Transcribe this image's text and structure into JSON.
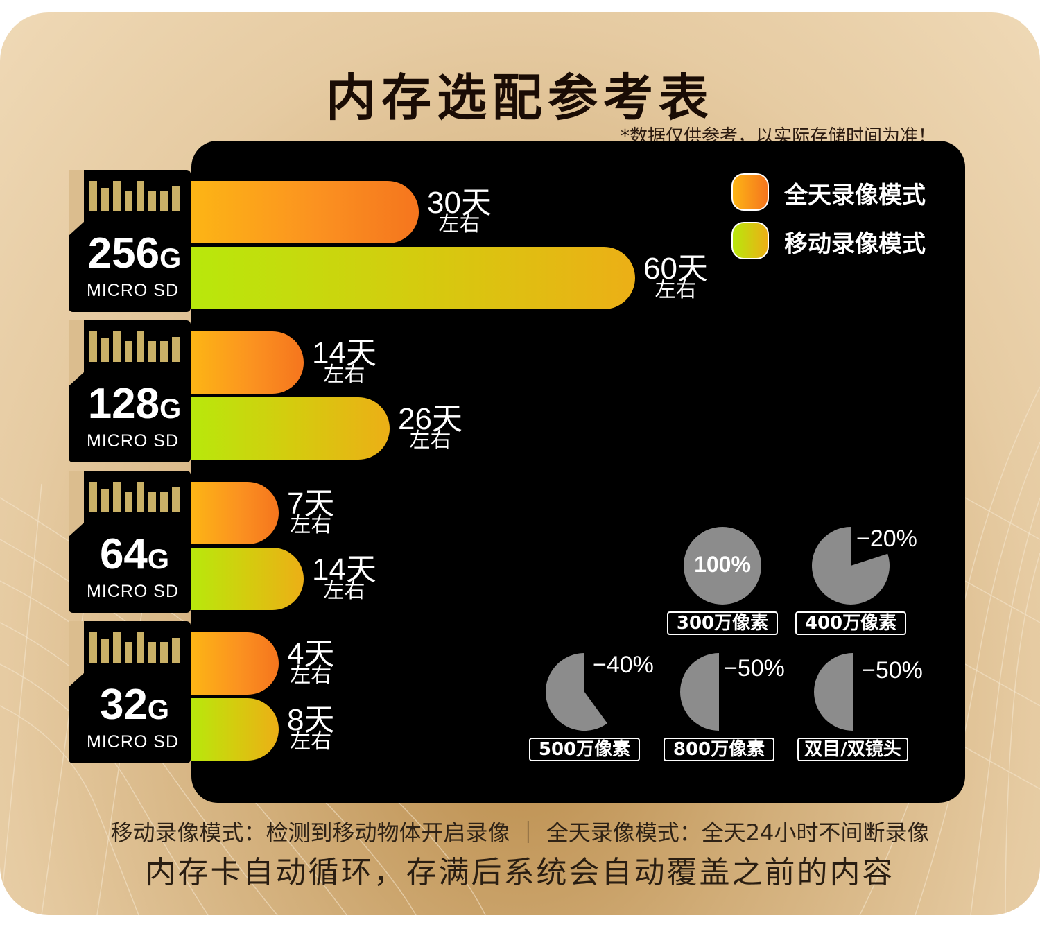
{
  "title": "内存选配参考表",
  "note": "*数据仅供参考，以实际存储时间为准！",
  "legend": [
    {
      "label": "全天录像模式",
      "color_start": "#fdb515",
      "color_end": "#f5751e"
    },
    {
      "label": "移动录像模式",
      "color_start": "#b8e80c",
      "color_end": "#ecaf16"
    }
  ],
  "cards": [
    {
      "cap_num": "256",
      "cap_unit": "G",
      "sub": "MICRO SD"
    },
    {
      "cap_num": "128",
      "cap_unit": "G",
      "sub": "MICRO SD"
    },
    {
      "cap_num": "64",
      "cap_unit": "G",
      "sub": "MICRO SD"
    },
    {
      "cap_num": "32",
      "cap_unit": "G",
      "sub": "MICRO SD"
    }
  ],
  "chart_data": {
    "type": "bar",
    "orientation": "horizontal",
    "categories": [
      "256G",
      "128G",
      "64G",
      "32G"
    ],
    "series": [
      {
        "name": "全天录像模式",
        "values": [
          30,
          14,
          7,
          4
        ],
        "labels": [
          "30天",
          "14天",
          "7天",
          "4天"
        ]
      },
      {
        "name": "移动录像模式",
        "values": [
          60,
          26,
          14,
          8
        ],
        "labels": [
          "60天",
          "26天",
          "14天",
          "8天"
        ]
      }
    ],
    "approx_suffix": "左右",
    "unit": "天"
  },
  "pies": [
    {
      "pct": 100,
      "text": "100%",
      "label": "300万像素"
    },
    {
      "pct": 80,
      "text": "−20%",
      "label": "400万像素"
    },
    {
      "pct": 60,
      "text": "−40%",
      "label": "500万像素"
    },
    {
      "pct": 50,
      "text": "−50%",
      "label": "800万像素"
    },
    {
      "pct": 50,
      "text": "−50%",
      "label": "双目/双镜头"
    }
  ],
  "footer": {
    "line1": "移动录像模式：检测到移动物体开启录像 ｜ 全天录像模式：全天24小时不间断录像",
    "line2": "内存卡自动循环，存满后系统会自动覆盖之前的内容"
  }
}
